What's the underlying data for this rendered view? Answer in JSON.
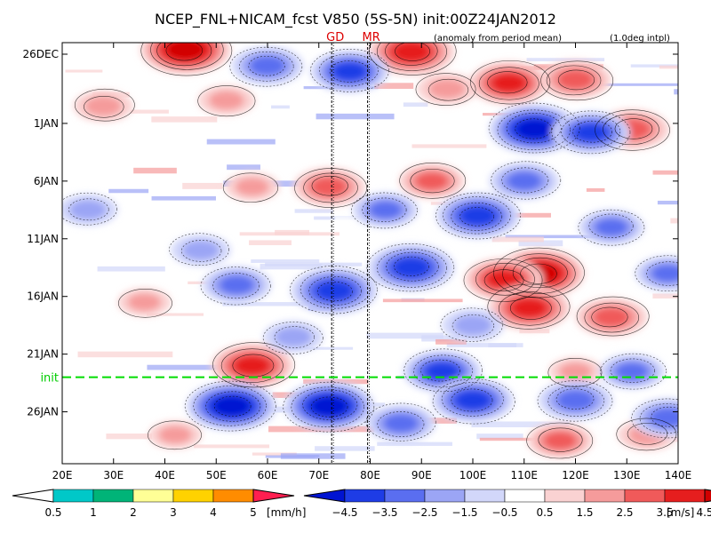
{
  "chart_data": {
    "type": "heatmap",
    "title": "NCEP_FNL+NICAM_fcst V850 (5S-5N) init:00Z24JAN2012",
    "subtitle": "(anomaly from period mean)",
    "note": "(1.0deg intpl)",
    "x_ticks": [
      "20E",
      "30E",
      "40E",
      "50E",
      "60E",
      "70E",
      "80E",
      "90E",
      "100E",
      "110E",
      "120E",
      "130E",
      "140E"
    ],
    "x_values": [
      20,
      30,
      40,
      50,
      60,
      70,
      80,
      90,
      100,
      110,
      120,
      130,
      140
    ],
    "xlim": [
      20,
      140
    ],
    "y_ticks": [
      "26DEC",
      "1JAN",
      "6JAN",
      "11JAN",
      "16JAN",
      "21JAN",
      "26JAN"
    ],
    "y_values": [
      0,
      6,
      11,
      16,
      21,
      26,
      31
    ],
    "ylim": [
      0,
      36.5
    ],
    "init_label": "init",
    "init_value": 29.0,
    "markers": [
      {
        "label": "GD",
        "x": 72.5
      },
      {
        "label": "MR",
        "x": 79.5
      }
    ],
    "precip_colorbar": {
      "labels": [
        "0.5",
        "1",
        "2",
        "3",
        "4",
        "5"
      ],
      "unit": "[mm/h]",
      "colors": [
        "#00c8c8",
        "#00b478",
        "#ffff96",
        "#ffd200",
        "#ff8c00",
        "#ff1e50"
      ]
    },
    "wind_colorbar": {
      "labels": [
        "−4.5",
        "−3.5",
        "−2.5",
        "−1.5",
        "−0.5",
        "0.5",
        "1.5",
        "2.5",
        "3.5",
        "4.5"
      ],
      "unit": "[m/s]",
      "colors": [
        "#0014d2",
        "#1e3ce6",
        "#5a6ef0",
        "#9ba5f5",
        "#d2d7fa",
        "#ffffff",
        "#fad2d2",
        "#f59b9b",
        "#f05a5a",
        "#e61e1e",
        "#d20000"
      ]
    },
    "anomaly_blobs": [
      {
        "x": 44,
        "y": 0.6,
        "v": 4.5
      },
      {
        "x": 88,
        "y": 0.8,
        "v": 4.2
      },
      {
        "x": 107,
        "y": 3.5,
        "v": 3.6
      },
      {
        "x": 120,
        "y": 3.2,
        "v": 3.0
      },
      {
        "x": 131,
        "y": 7.5,
        "v": 3.2
      },
      {
        "x": 95,
        "y": 4.0,
        "v": 2.0
      },
      {
        "x": 28,
        "y": 5.5,
        "v": 2.0
      },
      {
        "x": 52,
        "y": 5.0,
        "v": 1.8
      },
      {
        "x": 72,
        "y": 12.5,
        "v": 3.0
      },
      {
        "x": 92,
        "y": 12.0,
        "v": 2.5
      },
      {
        "x": 57,
        "y": 12.5,
        "v": 1.6
      },
      {
        "x": 113,
        "y": 20.0,
        "v": 4.5
      },
      {
        "x": 106,
        "y": 20.5,
        "v": 3.5
      },
      {
        "x": 111,
        "y": 23.0,
        "v": 3.8
      },
      {
        "x": 127,
        "y": 23.8,
        "v": 3.0
      },
      {
        "x": 57,
        "y": 28.0,
        "v": 3.8
      },
      {
        "x": 36,
        "y": 22.5,
        "v": 1.5
      },
      {
        "x": 120,
        "y": 28.5,
        "v": 1.5
      },
      {
        "x": 117,
        "y": 34.5,
        "v": 2.5
      },
      {
        "x": 134,
        "y": 34.0,
        "v": 2.0
      },
      {
        "x": 42,
        "y": 34.0,
        "v": 1.5
      },
      {
        "x": 60,
        "y": 2.0,
        "v": -3.0
      },
      {
        "x": 76,
        "y": 2.5,
        "v": -3.5
      },
      {
        "x": 112,
        "y": 7.5,
        "v": -4.5
      },
      {
        "x": 123,
        "y": 7.8,
        "v": -3.5
      },
      {
        "x": 101,
        "y": 15.0,
        "v": -4.0
      },
      {
        "x": 110,
        "y": 12.0,
        "v": -2.8
      },
      {
        "x": 83,
        "y": 14.5,
        "v": -2.5
      },
      {
        "x": 88,
        "y": 19.5,
        "v": -4.2
      },
      {
        "x": 73,
        "y": 21.5,
        "v": -4.2
      },
      {
        "x": 54,
        "y": 21.0,
        "v": -2.8
      },
      {
        "x": 25,
        "y": 14.5,
        "v": -2.0
      },
      {
        "x": 47,
        "y": 18.0,
        "v": -2.0
      },
      {
        "x": 94,
        "y": 28.5,
        "v": -3.5
      },
      {
        "x": 131,
        "y": 28.5,
        "v": -2.5
      },
      {
        "x": 72,
        "y": 31.5,
        "v": -4.5
      },
      {
        "x": 53,
        "y": 31.5,
        "v": -4.5
      },
      {
        "x": 100,
        "y": 31.0,
        "v": -3.8
      },
      {
        "x": 120,
        "y": 31.0,
        "v": -3.2
      },
      {
        "x": 86,
        "y": 33.0,
        "v": -2.8
      },
      {
        "x": 138,
        "y": 32.5,
        "v": -3.0
      },
      {
        "x": 65,
        "y": 25.5,
        "v": -2.0
      },
      {
        "x": 100,
        "y": 24.5,
        "v": -2.2
      },
      {
        "x": 127,
        "y": 16.0,
        "v": -2.5
      },
      {
        "x": 138,
        "y": 20.0,
        "v": -2.5
      }
    ]
  }
}
